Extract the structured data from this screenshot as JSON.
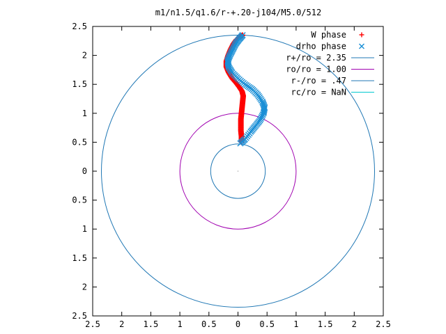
{
  "chart_data": {
    "type": "scatter",
    "title": "m1/n1.5/q1.6/r-+.20-j104/M5.0/512",
    "xlim": [
      -2.5,
      2.5
    ],
    "ylim": [
      -2.5,
      2.5
    ],
    "x_ticks": [
      {
        "value": -2.5,
        "label": "2.5"
      },
      {
        "value": -2,
        "label": "2"
      },
      {
        "value": -1.5,
        "label": "1.5"
      },
      {
        "value": -1,
        "label": "1"
      },
      {
        "value": -0.5,
        "label": "0.5"
      },
      {
        "value": 0,
        "label": "0"
      },
      {
        "value": 0.5,
        "label": "0.5"
      },
      {
        "value": 1,
        "label": "1"
      },
      {
        "value": 1.5,
        "label": "1.5"
      },
      {
        "value": 2,
        "label": "2"
      },
      {
        "value": 2.5,
        "label": "2.5"
      }
    ],
    "y_ticks": [
      {
        "value": 2.5,
        "label": "2.5"
      },
      {
        "value": 2,
        "label": "2"
      },
      {
        "value": 1.5,
        "label": "1.5"
      },
      {
        "value": 1,
        "label": "1"
      },
      {
        "value": 0.5,
        "label": "0.5"
      },
      {
        "value": 0,
        "label": "0"
      },
      {
        "value": -0.5,
        "label": "0.5"
      },
      {
        "value": -1,
        "label": "1"
      },
      {
        "value": -1.5,
        "label": "1.5"
      },
      {
        "value": -2,
        "label": "2"
      },
      {
        "value": -2.5,
        "label": "2.5"
      }
    ],
    "legend_position": "top-right",
    "series": [
      {
        "name": "W phase",
        "marker": "plus",
        "color": "#ff0000",
        "points": [
          [
            0.06,
            0.5
          ],
          [
            0.06,
            0.6
          ],
          [
            0.05,
            0.7
          ],
          [
            0.05,
            0.8
          ],
          [
            0.05,
            0.9
          ],
          [
            0.06,
            1.0
          ],
          [
            0.07,
            1.1
          ],
          [
            0.08,
            1.2
          ],
          [
            0.09,
            1.3
          ],
          [
            0.07,
            1.38
          ],
          [
            0.03,
            1.44
          ],
          [
            -0.03,
            1.52
          ],
          [
            -0.1,
            1.6
          ],
          [
            -0.16,
            1.7
          ],
          [
            -0.2,
            1.8
          ],
          [
            -0.2,
            1.9
          ],
          [
            -0.17,
            2.0
          ],
          [
            -0.13,
            2.1
          ],
          [
            -0.08,
            2.2
          ],
          [
            -0.03,
            2.27
          ],
          [
            0.03,
            2.32
          ],
          [
            0.08,
            2.35
          ]
        ]
      },
      {
        "name": "drho phase",
        "marker": "cross",
        "color": "#1a8fd6",
        "points": [
          [
            0.04,
            0.48
          ],
          [
            0.12,
            0.55
          ],
          [
            0.22,
            0.68
          ],
          [
            0.3,
            0.78
          ],
          [
            0.38,
            0.88
          ],
          [
            0.44,
            1.0
          ],
          [
            0.46,
            1.1
          ],
          [
            0.42,
            1.2
          ],
          [
            0.34,
            1.32
          ],
          [
            0.24,
            1.42
          ],
          [
            0.12,
            1.5
          ],
          [
            0.0,
            1.6
          ],
          [
            -0.1,
            1.7
          ],
          [
            -0.16,
            1.8
          ],
          [
            -0.18,
            1.9
          ],
          [
            -0.14,
            2.0
          ],
          [
            -0.09,
            2.1
          ],
          [
            -0.04,
            2.2
          ],
          [
            0.02,
            2.28
          ],
          [
            0.08,
            2.35
          ]
        ]
      },
      {
        "name": "r+/ro = 2.35",
        "type": "circle",
        "radius": 2.35,
        "color": "#1f77b4"
      },
      {
        "name": "ro/ro = 1.00",
        "type": "circle",
        "radius": 1.0,
        "color": "#a000b0"
      },
      {
        "name": "r-/ro = .47",
        "type": "circle",
        "radius": 0.47,
        "color": "#1f77b4"
      },
      {
        "name": "rc/ro = NaN",
        "type": "circle",
        "radius": null,
        "color": "#00c8d0"
      }
    ]
  }
}
